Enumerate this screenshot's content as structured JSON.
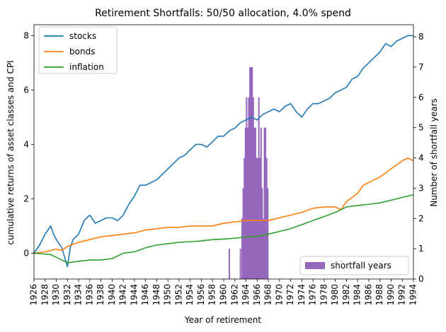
{
  "chart_data": {
    "type": "line",
    "title": "Retirement Shortfalls: 50/50 allocation, 4.0% spend",
    "xlabel": "Year of retirement",
    "ylabel_left": "cumulative returns of asset classes and CPI",
    "ylabel_right": "Number of shortfall years",
    "xlim": [
      1926,
      1994
    ],
    "ylim_left": [
      -0.95,
      8.4
    ],
    "ylim_right": [
      0,
      8.4
    ],
    "x_ticks": [
      "1926",
      "1928",
      "1930",
      "1932",
      "1934",
      "1936",
      "1938",
      "1940",
      "1942",
      "1944",
      "1946",
      "1948",
      "1950",
      "1952",
      "1954",
      "1956",
      "1958",
      "1960",
      "1962",
      "1964",
      "1966",
      "1968",
      "1970",
      "1972",
      "1974",
      "1976",
      "1978",
      "1980",
      "1982",
      "1984",
      "1986",
      "1988",
      "1990",
      "1992",
      "1994"
    ],
    "y_ticks_left": [
      "0",
      "2",
      "4",
      "6",
      "8"
    ],
    "y_ticks_right": [
      "0",
      "1",
      "2",
      "3",
      "4",
      "5",
      "6",
      "7",
      "8"
    ],
    "legend_upper": {
      "position": "top-left",
      "entries": [
        "stocks",
        "bonds",
        "inflation"
      ]
    },
    "legend_lower": {
      "position": "bottom-right",
      "entries": [
        "shortfall years"
      ]
    },
    "series": [
      {
        "name": "stocks",
        "color": "#1f77b4",
        "points": [
          [
            1926,
            0
          ],
          [
            1927,
            0.3
          ],
          [
            1928,
            0.7
          ],
          [
            1929,
            1.0
          ],
          [
            1929.5,
            0.7
          ],
          [
            1930,
            0.5
          ],
          [
            1931,
            0.2
          ],
          [
            1932,
            -0.5
          ],
          [
            1932.5,
            0.2
          ],
          [
            1933,
            0.5
          ],
          [
            1934,
            0.7
          ],
          [
            1935,
            1.2
          ],
          [
            1936,
            1.4
          ],
          [
            1937,
            1.1
          ],
          [
            1938,
            1.2
          ],
          [
            1939,
            1.3
          ],
          [
            1940,
            1.3
          ],
          [
            1941,
            1.2
          ],
          [
            1942,
            1.4
          ],
          [
            1943,
            1.8
          ],
          [
            1944,
            2.1
          ],
          [
            1945,
            2.5
          ],
          [
            1946,
            2.5
          ],
          [
            1947,
            2.6
          ],
          [
            1948,
            2.7
          ],
          [
            1949,
            2.9
          ],
          [
            1950,
            3.1
          ],
          [
            1951,
            3.3
          ],
          [
            1952,
            3.5
          ],
          [
            1953,
            3.6
          ],
          [
            1954,
            3.8
          ],
          [
            1955,
            4.0
          ],
          [
            1956,
            4.0
          ],
          [
            1957,
            3.9
          ],
          [
            1958,
            4.1
          ],
          [
            1959,
            4.3
          ],
          [
            1960,
            4.3
          ],
          [
            1961,
            4.5
          ],
          [
            1962,
            4.6
          ],
          [
            1963,
            4.8
          ],
          [
            1964,
            4.9
          ],
          [
            1965,
            5.0
          ],
          [
            1966,
            4.9
          ],
          [
            1967,
            5.1
          ],
          [
            1968,
            5.2
          ],
          [
            1969,
            5.3
          ],
          [
            1970,
            5.2
          ],
          [
            1971,
            5.4
          ],
          [
            1972,
            5.5
          ],
          [
            1973,
            5.2
          ],
          [
            1974,
            5.0
          ],
          [
            1975,
            5.3
          ],
          [
            1976,
            5.5
          ],
          [
            1977,
            5.5
          ],
          [
            1978,
            5.6
          ],
          [
            1979,
            5.7
          ],
          [
            1980,
            5.9
          ],
          [
            1981,
            6.0
          ],
          [
            1982,
            6.1
          ],
          [
            1983,
            6.4
          ],
          [
            1984,
            6.5
          ],
          [
            1985,
            6.8
          ],
          [
            1986,
            7.0
          ],
          [
            1987,
            7.2
          ],
          [
            1988,
            7.4
          ],
          [
            1989,
            7.7
          ],
          [
            1990,
            7.6
          ],
          [
            1991,
            7.8
          ],
          [
            1992,
            7.9
          ],
          [
            1993,
            8.0
          ],
          [
            1994,
            8.0
          ]
        ]
      },
      {
        "name": "bonds",
        "color": "#ff7f0e",
        "points": [
          [
            1926,
            0
          ],
          [
            1928,
            0.05
          ],
          [
            1930,
            0.15
          ],
          [
            1931,
            0.1
          ],
          [
            1932,
            0.25
          ],
          [
            1934,
            0.4
          ],
          [
            1936,
            0.5
          ],
          [
            1938,
            0.6
          ],
          [
            1940,
            0.65
          ],
          [
            1942,
            0.7
          ],
          [
            1944,
            0.75
          ],
          [
            1946,
            0.85
          ],
          [
            1948,
            0.9
          ],
          [
            1950,
            0.95
          ],
          [
            1952,
            0.95
          ],
          [
            1954,
            1.0
          ],
          [
            1956,
            1.0
          ],
          [
            1958,
            1.0
          ],
          [
            1960,
            1.1
          ],
          [
            1962,
            1.15
          ],
          [
            1964,
            1.2
          ],
          [
            1966,
            1.2
          ],
          [
            1968,
            1.2
          ],
          [
            1970,
            1.3
          ],
          [
            1972,
            1.4
          ],
          [
            1974,
            1.5
          ],
          [
            1976,
            1.65
          ],
          [
            1978,
            1.7
          ],
          [
            1980,
            1.7
          ],
          [
            1981,
            1.6
          ],
          [
            1982,
            1.9
          ],
          [
            1984,
            2.2
          ],
          [
            1985,
            2.5
          ],
          [
            1986,
            2.6
          ],
          [
            1988,
            2.8
          ],
          [
            1990,
            3.1
          ],
          [
            1992,
            3.4
          ],
          [
            1993,
            3.5
          ],
          [
            1994,
            3.4
          ]
        ]
      },
      {
        "name": "inflation",
        "color": "#2ca02c",
        "points": [
          [
            1926,
            0
          ],
          [
            1929,
            -0.05
          ],
          [
            1930,
            -0.15
          ],
          [
            1932,
            -0.35
          ],
          [
            1934,
            -0.3
          ],
          [
            1936,
            -0.25
          ],
          [
            1938,
            -0.25
          ],
          [
            1940,
            -0.2
          ],
          [
            1942,
            0.0
          ],
          [
            1944,
            0.05
          ],
          [
            1946,
            0.2
          ],
          [
            1948,
            0.3
          ],
          [
            1950,
            0.35
          ],
          [
            1952,
            0.4
          ],
          [
            1954,
            0.42
          ],
          [
            1956,
            0.45
          ],
          [
            1958,
            0.5
          ],
          [
            1960,
            0.52
          ],
          [
            1962,
            0.55
          ],
          [
            1964,
            0.6
          ],
          [
            1966,
            0.62
          ],
          [
            1968,
            0.7
          ],
          [
            1970,
            0.8
          ],
          [
            1972,
            0.9
          ],
          [
            1974,
            1.05
          ],
          [
            1976,
            1.2
          ],
          [
            1978,
            1.35
          ],
          [
            1980,
            1.5
          ],
          [
            1982,
            1.7
          ],
          [
            1984,
            1.75
          ],
          [
            1986,
            1.8
          ],
          [
            1988,
            1.85
          ],
          [
            1990,
            1.95
          ],
          [
            1992,
            2.05
          ],
          [
            1994,
            2.15
          ]
        ]
      },
      {
        "name": "shortfall years",
        "type": "bar",
        "axis": "right",
        "color": "#9467bd",
        "bars": [
          [
            1961,
            1
          ],
          [
            1963,
            1
          ],
          [
            1963.3,
            2
          ],
          [
            1963.5,
            3
          ],
          [
            1963.7,
            4
          ],
          [
            1963.9,
            5
          ],
          [
            1964.1,
            6
          ],
          [
            1964.3,
            5
          ],
          [
            1964.5,
            6
          ],
          [
            1964.7,
            7
          ],
          [
            1964.9,
            7
          ],
          [
            1965.1,
            7
          ],
          [
            1965.3,
            6
          ],
          [
            1965.5,
            5
          ],
          [
            1965.7,
            5
          ],
          [
            1965.9,
            4
          ],
          [
            1966.1,
            4
          ],
          [
            1966.3,
            6
          ],
          [
            1966.5,
            4
          ],
          [
            1966.7,
            5
          ],
          [
            1966.9,
            3
          ],
          [
            1967.1,
            2
          ],
          [
            1967.3,
            5
          ],
          [
            1967.5,
            5
          ],
          [
            1967.7,
            4
          ],
          [
            1967.9,
            3
          ]
        ]
      }
    ]
  }
}
